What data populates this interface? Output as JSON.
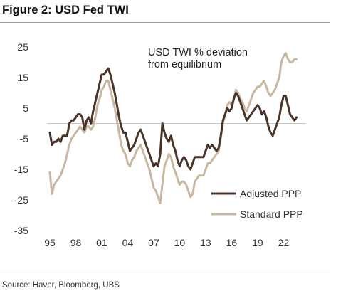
{
  "figure_title": "Figure 2: USD Fed TWI",
  "source": "Source: Haver, Bloomberg, UBS",
  "chart_data": {
    "type": "line",
    "title": "",
    "annotation": [
      "USD TWI % deviation",
      "from equilibrium"
    ],
    "xlabel": "",
    "ylabel": "",
    "xlim": [
      1995,
      2024.6
    ],
    "ylim": [
      -35,
      25
    ],
    "yticks": [
      25,
      15,
      5,
      -5,
      -15,
      -25,
      -35
    ],
    "xticks": [
      1995,
      1998,
      2001,
      2004,
      2007,
      2010,
      2013,
      2016,
      2019,
      2022
    ],
    "xtick_labels": [
      "95",
      "98",
      "01",
      "04",
      "07",
      "10",
      "13",
      "16",
      "19",
      "22"
    ],
    "zero_line": true,
    "grid": false,
    "legend_position": "lower-right",
    "series": [
      {
        "name": "Adjusted PPP",
        "color": "#4a3328",
        "points": [
          [
            1995.0,
            -3
          ],
          [
            1995.25,
            -7
          ],
          [
            1995.5,
            -6
          ],
          [
            1995.75,
            -6
          ],
          [
            1996.0,
            -5
          ],
          [
            1996.25,
            -6
          ],
          [
            1996.5,
            -4
          ],
          [
            1996.75,
            -4
          ],
          [
            1997.0,
            -4
          ],
          [
            1997.25,
            0
          ],
          [
            1997.5,
            1
          ],
          [
            1997.75,
            1
          ],
          [
            1998.0,
            2
          ],
          [
            1998.25,
            3
          ],
          [
            1998.5,
            3
          ],
          [
            1998.75,
            2
          ],
          [
            1999.0,
            -2
          ],
          [
            1999.25,
            1
          ],
          [
            1999.5,
            2
          ],
          [
            1999.75,
            0
          ],
          [
            2000.0,
            4
          ],
          [
            2000.25,
            7
          ],
          [
            2000.5,
            10
          ],
          [
            2000.75,
            13
          ],
          [
            2001.0,
            16
          ],
          [
            2001.25,
            16
          ],
          [
            2001.5,
            17
          ],
          [
            2001.75,
            18
          ],
          [
            2002.0,
            16
          ],
          [
            2002.25,
            13
          ],
          [
            2002.5,
            10
          ],
          [
            2002.75,
            6
          ],
          [
            2003.0,
            2
          ],
          [
            2003.25,
            -1
          ],
          [
            2003.5,
            -3
          ],
          [
            2003.75,
            -3
          ],
          [
            2004.0,
            -6
          ],
          [
            2004.25,
            -9
          ],
          [
            2004.5,
            -8
          ],
          [
            2004.75,
            -7
          ],
          [
            2005.0,
            -5
          ],
          [
            2005.25,
            -3
          ],
          [
            2005.5,
            -2
          ],
          [
            2005.75,
            -4
          ],
          [
            2006.0,
            -6
          ],
          [
            2006.25,
            -8
          ],
          [
            2006.5,
            -10
          ],
          [
            2006.75,
            -12
          ],
          [
            2007.0,
            -14
          ],
          [
            2007.25,
            -13
          ],
          [
            2007.5,
            -14
          ],
          [
            2007.75,
            -10
          ],
          [
            2008.0,
            0
          ],
          [
            2008.25,
            -3
          ],
          [
            2008.5,
            -5
          ],
          [
            2008.75,
            -6
          ],
          [
            2009.0,
            -4
          ],
          [
            2009.25,
            -7
          ],
          [
            2009.5,
            -9
          ],
          [
            2009.75,
            -12
          ],
          [
            2010.0,
            -14
          ],
          [
            2010.25,
            -12
          ],
          [
            2010.5,
            -11
          ],
          [
            2010.75,
            -12
          ],
          [
            2011.0,
            -14
          ],
          [
            2011.25,
            -15
          ],
          [
            2011.5,
            -13
          ],
          [
            2011.75,
            -11
          ],
          [
            2012.0,
            -11
          ],
          [
            2012.25,
            -11
          ],
          [
            2012.5,
            -11
          ],
          [
            2012.75,
            -11
          ],
          [
            2013.0,
            -9
          ],
          [
            2013.25,
            -7
          ],
          [
            2013.5,
            -8
          ],
          [
            2013.75,
            -7
          ],
          [
            2014.0,
            -8
          ],
          [
            2014.25,
            -9
          ],
          [
            2014.5,
            -8
          ],
          [
            2014.75,
            -4
          ],
          [
            2015.0,
            1
          ],
          [
            2015.25,
            3
          ],
          [
            2015.5,
            5
          ],
          [
            2015.75,
            4
          ],
          [
            2016.0,
            5
          ],
          [
            2016.25,
            8
          ],
          [
            2016.5,
            10
          ],
          [
            2016.75,
            9
          ],
          [
            2017.0,
            7
          ],
          [
            2017.25,
            5
          ],
          [
            2017.5,
            3
          ],
          [
            2017.75,
            1
          ],
          [
            2018.0,
            2
          ],
          [
            2018.25,
            3
          ],
          [
            2018.5,
            4
          ],
          [
            2018.75,
            5
          ],
          [
            2019.0,
            6
          ],
          [
            2019.25,
            5
          ],
          [
            2019.5,
            3
          ],
          [
            2019.75,
            4
          ],
          [
            2020.0,
            2
          ],
          [
            2020.25,
            -1
          ],
          [
            2020.5,
            -3
          ],
          [
            2020.75,
            -4
          ],
          [
            2021.0,
            -2
          ],
          [
            2021.25,
            0
          ],
          [
            2021.5,
            2
          ],
          [
            2021.75,
            6
          ],
          [
            2022.0,
            9
          ],
          [
            2022.25,
            9
          ],
          [
            2022.5,
            6
          ],
          [
            2022.75,
            3
          ],
          [
            2023.0,
            2
          ],
          [
            2023.25,
            1
          ],
          [
            2023.5,
            2
          ]
        ]
      },
      {
        "name": "Standard PPP",
        "color": "#c9b8a1",
        "points": [
          [
            1995.0,
            -16
          ],
          [
            1995.25,
            -23
          ],
          [
            1995.5,
            -20
          ],
          [
            1995.75,
            -19
          ],
          [
            1996.0,
            -18
          ],
          [
            1996.25,
            -17
          ],
          [
            1996.5,
            -15
          ],
          [
            1996.75,
            -13
          ],
          [
            1997.0,
            -10
          ],
          [
            1997.25,
            -7
          ],
          [
            1997.5,
            -5
          ],
          [
            1997.75,
            -4
          ],
          [
            1998.0,
            -3
          ],
          [
            1998.25,
            -2
          ],
          [
            1998.5,
            -1
          ],
          [
            1998.75,
            -2
          ],
          [
            1999.0,
            -3
          ],
          [
            1999.25,
            -1
          ],
          [
            1999.5,
            -1
          ],
          [
            1999.75,
            -2
          ],
          [
            2000.0,
            -1
          ],
          [
            2000.25,
            2
          ],
          [
            2000.5,
            6
          ],
          [
            2000.75,
            8
          ],
          [
            2001.0,
            11
          ],
          [
            2001.25,
            12
          ],
          [
            2001.5,
            14
          ],
          [
            2001.75,
            14
          ],
          [
            2002.0,
            11
          ],
          [
            2002.25,
            8
          ],
          [
            2002.5,
            5
          ],
          [
            2002.75,
            1
          ],
          [
            2003.0,
            -3
          ],
          [
            2003.25,
            -7
          ],
          [
            2003.5,
            -9
          ],
          [
            2003.75,
            -10
          ],
          [
            2004.0,
            -13
          ],
          [
            2004.25,
            -14
          ],
          [
            2004.5,
            -12
          ],
          [
            2004.75,
            -11
          ],
          [
            2005.0,
            -9
          ],
          [
            2005.25,
            -8
          ],
          [
            2005.5,
            -7
          ],
          [
            2005.75,
            -9
          ],
          [
            2006.0,
            -11
          ],
          [
            2006.25,
            -13
          ],
          [
            2006.5,
            -15
          ],
          [
            2006.75,
            -18
          ],
          [
            2007.0,
            -21
          ],
          [
            2007.25,
            -22
          ],
          [
            2007.5,
            -24
          ],
          [
            2007.75,
            -26
          ],
          [
            2008.0,
            -20
          ],
          [
            2008.25,
            -14
          ],
          [
            2008.5,
            -12
          ],
          [
            2008.75,
            -10
          ],
          [
            2009.0,
            -11
          ],
          [
            2009.25,
            -14
          ],
          [
            2009.5,
            -16
          ],
          [
            2009.75,
            -18
          ],
          [
            2010.0,
            -20
          ],
          [
            2010.25,
            -19
          ],
          [
            2010.5,
            -19
          ],
          [
            2010.75,
            -20
          ],
          [
            2011.0,
            -22
          ],
          [
            2011.25,
            -24
          ],
          [
            2011.5,
            -23
          ],
          [
            2011.75,
            -19
          ],
          [
            2012.0,
            -18
          ],
          [
            2012.25,
            -17
          ],
          [
            2012.5,
            -17
          ],
          [
            2012.75,
            -17
          ],
          [
            2013.0,
            -15
          ],
          [
            2013.25,
            -13
          ],
          [
            2013.5,
            -13
          ],
          [
            2013.75,
            -12
          ],
          [
            2014.0,
            -11
          ],
          [
            2014.25,
            -10
          ],
          [
            2014.5,
            -9
          ],
          [
            2014.75,
            -5
          ],
          [
            2015.0,
            0
          ],
          [
            2015.25,
            3
          ],
          [
            2015.5,
            6
          ],
          [
            2015.75,
            7
          ],
          [
            2016.0,
            6
          ],
          [
            2016.25,
            8
          ],
          [
            2016.5,
            11
          ],
          [
            2016.75,
            10
          ],
          [
            2017.0,
            8
          ],
          [
            2017.25,
            7
          ],
          [
            2017.5,
            5
          ],
          [
            2017.75,
            4
          ],
          [
            2018.0,
            6
          ],
          [
            2018.25,
            8
          ],
          [
            2018.5,
            10
          ],
          [
            2018.75,
            11
          ],
          [
            2019.0,
            12
          ],
          [
            2019.25,
            12
          ],
          [
            2019.5,
            13
          ],
          [
            2019.75,
            14
          ],
          [
            2020.0,
            12
          ],
          [
            2020.25,
            10
          ],
          [
            2020.5,
            9
          ],
          [
            2020.75,
            10
          ],
          [
            2021.0,
            11
          ],
          [
            2021.25,
            13
          ],
          [
            2021.5,
            15
          ],
          [
            2021.75,
            20
          ],
          [
            2022.0,
            22
          ],
          [
            2022.25,
            23
          ],
          [
            2022.5,
            21
          ],
          [
            2022.75,
            20
          ],
          [
            2023.0,
            20
          ],
          [
            2023.25,
            21
          ],
          [
            2023.5,
            21
          ]
        ]
      }
    ]
  }
}
